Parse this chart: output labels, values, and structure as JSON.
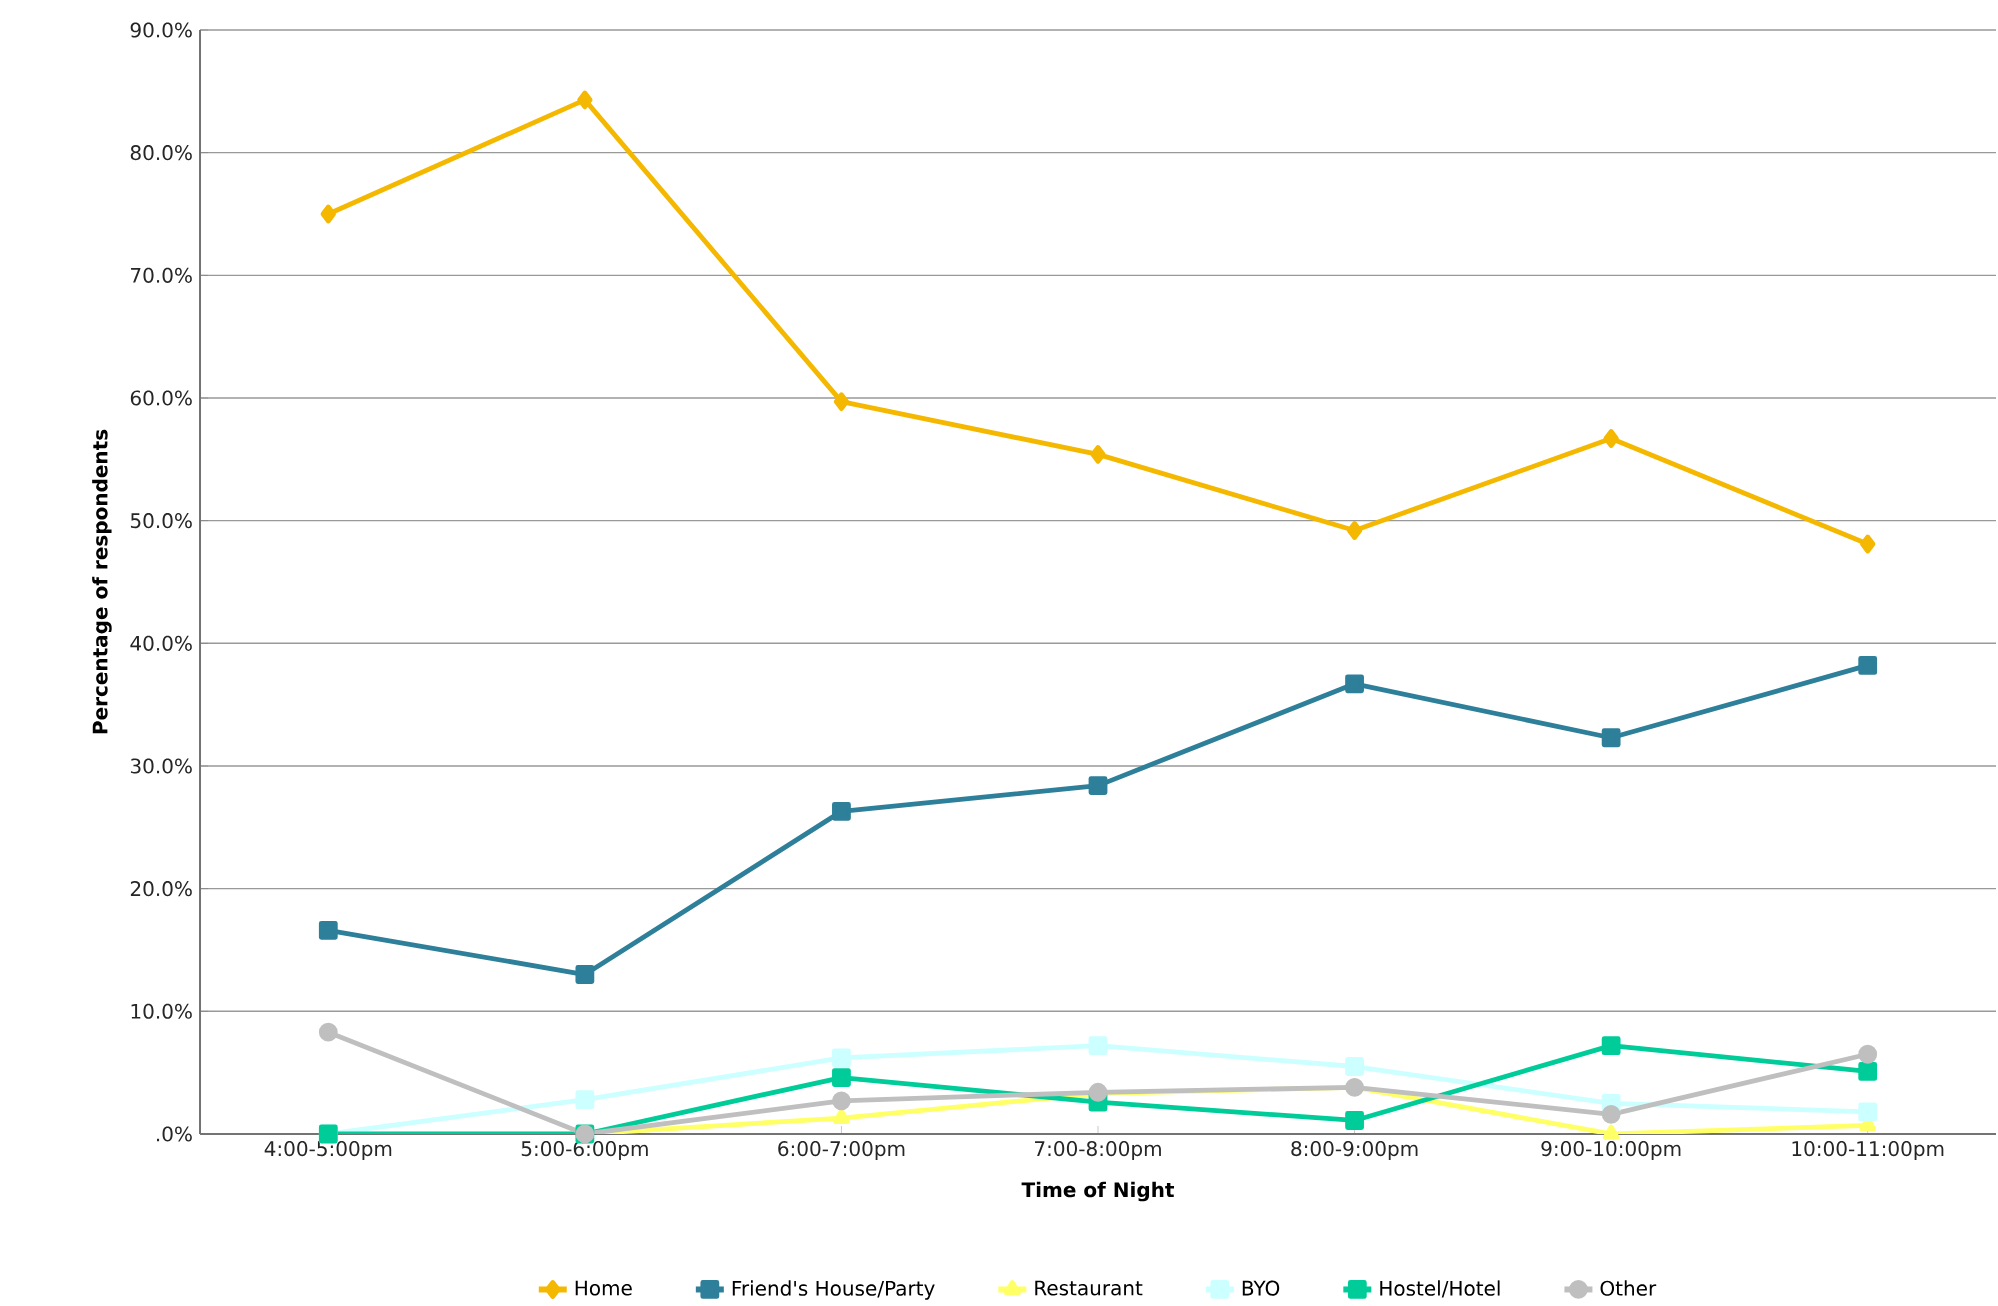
{
  "chart_data": {
    "type": "line",
    "xlabel": "Time of Night",
    "ylabel": "Percentage of respondents",
    "categories": [
      "4:00-5:00pm",
      "5:00-6:00pm",
      "6:00-7:00pm",
      "7:00-8:00pm",
      "8:00-9:00pm",
      "9:00-10:00pm",
      "10:00-11:00pm"
    ],
    "series": [
      {
        "name": "Home",
        "color": "#f5b800",
        "marker": "diamond",
        "values": [
          75.0,
          84.3,
          59.7,
          55.4,
          49.2,
          56.7,
          48.1
        ]
      },
      {
        "name": "Friend's House/Party",
        "color": "#2e7f99",
        "marker": "square",
        "values": [
          16.6,
          13.0,
          26.3,
          28.4,
          36.7,
          32.3,
          38.2
        ]
      },
      {
        "name": "Restaurant",
        "color": "#ffff66",
        "marker": "triangle",
        "values": [
          0.0,
          0.0,
          1.3,
          3.3,
          3.8,
          0.0,
          0.7
        ]
      },
      {
        "name": "BYO",
        "color": "#ccffff",
        "marker": "square",
        "values": [
          0.0,
          2.8,
          6.2,
          7.2,
          5.5,
          2.5,
          1.8
        ]
      },
      {
        "name": "Hostel/Hotel",
        "color": "#00cc99",
        "marker": "square",
        "values": [
          0.0,
          0.0,
          4.6,
          2.6,
          1.1,
          7.2,
          5.1
        ]
      },
      {
        "name": "Other",
        "color": "#bfbfbf",
        "marker": "circle",
        "values": [
          8.3,
          0.0,
          2.7,
          3.4,
          3.8,
          1.6,
          6.5
        ]
      }
    ],
    "ylim": [
      0,
      90
    ],
    "yticks": [
      {
        "value": 0,
        "label": ".0%"
      },
      {
        "value": 10,
        "label": "10.0%"
      },
      {
        "value": 20,
        "label": "20.0%"
      },
      {
        "value": 30,
        "label": "30.0%"
      },
      {
        "value": 40,
        "label": "40.0%"
      },
      {
        "value": 50,
        "label": "50.0%"
      },
      {
        "value": 60,
        "label": "60.0%"
      },
      {
        "value": 70,
        "label": "70.0%"
      },
      {
        "value": 80,
        "label": "80.0%"
      },
      {
        "value": 90,
        "label": "90.0%"
      }
    ],
    "grid": "y",
    "legend": "bottom"
  }
}
